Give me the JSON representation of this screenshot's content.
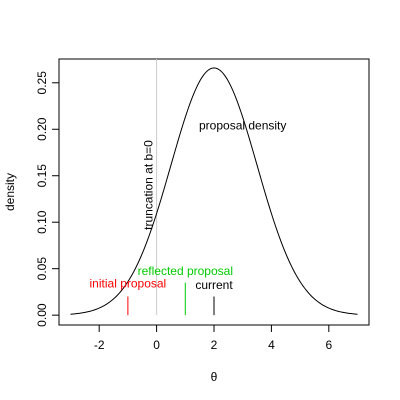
{
  "chart_data": {
    "type": "line",
    "title": "",
    "xlabel": "θ",
    "ylabel": "density",
    "xlim": [
      -3.4,
      7.4
    ],
    "ylim": [
      -0.0106,
      0.2756
    ],
    "x_ticks": [
      -2,
      0,
      2,
      4,
      6
    ],
    "x_tick_labels": [
      "-2",
      "0",
      "2",
      "4",
      "6"
    ],
    "y_ticks": [
      0.0,
      0.05,
      0.1,
      0.15,
      0.2,
      0.25
    ],
    "y_tick_labels": [
      "0.00",
      "0.05",
      "0.10",
      "0.15",
      "0.20",
      "0.25"
    ],
    "grid": false,
    "series": [
      {
        "color": "#000000",
        "x": [
          -3,
          -2.5,
          -2,
          -1.5,
          -1,
          -0.5,
          0,
          0.5,
          1,
          1.5,
          2,
          2.5,
          3,
          3.5,
          4,
          4.5,
          5,
          5.5,
          6,
          6.5,
          7
        ],
        "y": [
          0.002,
          0.004,
          0.009,
          0.018,
          0.032,
          0.054,
          0.081,
          0.129,
          0.176,
          0.242,
          0.266,
          0.242,
          0.176,
          0.129,
          0.081,
          0.054,
          0.032,
          0.018,
          0.009,
          0.004,
          0.002
        ]
      }
    ],
    "vlines": [
      {
        "x": 0,
        "y0": 0,
        "y1": 0.2756,
        "color": "#cccccc"
      },
      {
        "x": -1,
        "y0": 0,
        "y1": 0.02,
        "color": "#ff0000"
      },
      {
        "x": 1,
        "y0": 0,
        "y1": 0.035,
        "color": "#00cc00"
      },
      {
        "x": 2,
        "y0": 0,
        "y1": 0.02,
        "color": "#000000"
      }
    ],
    "annotations": [
      {
        "text": "proposal density",
        "x": 3.0,
        "y": 0.2,
        "color": "#000000",
        "rotate": 0
      },
      {
        "text": "truncation at b=0",
        "x": -0.15,
        "y": 0.14,
        "color": "#000000",
        "rotate": -90
      },
      {
        "text": "reflected proposal",
        "x": 1.0,
        "y": 0.043,
        "color": "#00cc00",
        "rotate": 0
      },
      {
        "text": "initial proposal",
        "x": -1.0,
        "y": 0.03,
        "color": "#ff0000",
        "rotate": 0
      },
      {
        "text": "current",
        "x": 2.0,
        "y": 0.028,
        "color": "#000000",
        "rotate": 0
      }
    ]
  }
}
